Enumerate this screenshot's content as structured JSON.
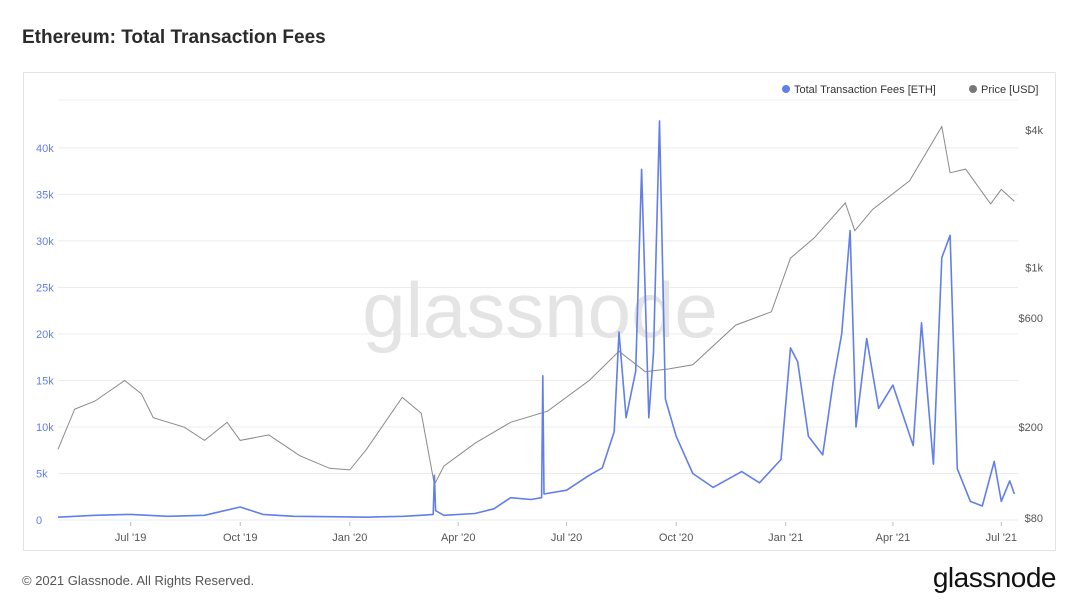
{
  "title": "Ethereum: Total Transaction Fees",
  "watermark": "glassnode",
  "footer": {
    "copyright": "© 2021 Glassnode. All Rights Reserved.",
    "brand": "glassnode"
  },
  "colors": {
    "fees": "#627eea",
    "price": "#8a8a8a",
    "grid": "#ececec",
    "left_axis_text": "#627eea"
  },
  "chart_data": {
    "type": "line",
    "title": "Ethereum: Total Transaction Fees",
    "legend_position": "top-right",
    "grid": true,
    "x_range": [
      "2019-05-01",
      "2021-07-15"
    ],
    "x_ticks": [
      {
        "date": "2019-07-01",
        "label": "Jul '19"
      },
      {
        "date": "2019-10-01",
        "label": "Oct '19"
      },
      {
        "date": "2020-01-01",
        "label": "Jan '20"
      },
      {
        "date": "2020-04-01",
        "label": "Apr '20"
      },
      {
        "date": "2020-07-01",
        "label": "Jul '20"
      },
      {
        "date": "2020-10-01",
        "label": "Oct '20"
      },
      {
        "date": "2021-01-01",
        "label": "Jan '21"
      },
      {
        "date": "2021-04-01",
        "label": "Apr '21"
      },
      {
        "date": "2021-07-01",
        "label": "Jul '21"
      }
    ],
    "y_left": {
      "range": [
        0,
        43000
      ],
      "ticks": [
        {
          "value": 0,
          "label": "0"
        },
        {
          "value": 5000,
          "label": "5k"
        },
        {
          "value": 10000,
          "label": "10k"
        },
        {
          "value": 15000,
          "label": "15k"
        },
        {
          "value": 20000,
          "label": "20k"
        },
        {
          "value": 25000,
          "label": "25k"
        },
        {
          "value": 30000,
          "label": "30k"
        },
        {
          "value": 35000,
          "label": "35k"
        },
        {
          "value": 40000,
          "label": "40k"
        }
      ]
    },
    "y_right": {
      "scale": "log",
      "range": [
        80,
        5000
      ],
      "ticks": [
        {
          "value": 80,
          "label": "$80"
        },
        {
          "value": 200,
          "label": "$200"
        },
        {
          "value": 600,
          "label": "$600"
        },
        {
          "value": 1000,
          "label": "$1k"
        },
        {
          "value": 4000,
          "label": "$4k"
        }
      ]
    },
    "series": [
      {
        "name": "Total Transaction Fees [ETH]",
        "axis": "left",
        "points": [
          [
            "2019-05-01",
            300
          ],
          [
            "2019-06-01",
            500
          ],
          [
            "2019-07-01",
            600
          ],
          [
            "2019-08-01",
            400
          ],
          [
            "2019-09-01",
            500
          ],
          [
            "2019-10-01",
            1400
          ],
          [
            "2019-10-20",
            600
          ],
          [
            "2019-11-15",
            400
          ],
          [
            "2019-12-15",
            350
          ],
          [
            "2020-01-15",
            300
          ],
          [
            "2020-02-15",
            400
          ],
          [
            "2020-03-01",
            500
          ],
          [
            "2020-03-11",
            600
          ],
          [
            "2020-03-12",
            4800
          ],
          [
            "2020-03-13",
            1000
          ],
          [
            "2020-03-20",
            500
          ],
          [
            "2020-04-15",
            700
          ],
          [
            "2020-05-01",
            1200
          ],
          [
            "2020-05-15",
            2400
          ],
          [
            "2020-06-01",
            2200
          ],
          [
            "2020-06-10",
            2400
          ],
          [
            "2020-06-11",
            15500
          ],
          [
            "2020-06-12",
            2800
          ],
          [
            "2020-07-01",
            3200
          ],
          [
            "2020-07-20",
            4800
          ],
          [
            "2020-07-31",
            5600
          ],
          [
            "2020-08-10",
            9500
          ],
          [
            "2020-08-14",
            20200
          ],
          [
            "2020-08-20",
            11000
          ],
          [
            "2020-08-28",
            16000
          ],
          [
            "2020-09-02",
            37700
          ],
          [
            "2020-09-08",
            11000
          ],
          [
            "2020-09-12",
            18000
          ],
          [
            "2020-09-17",
            42900
          ],
          [
            "2020-09-22",
            13000
          ],
          [
            "2020-10-01",
            9000
          ],
          [
            "2020-10-15",
            5000
          ],
          [
            "2020-11-01",
            3500
          ],
          [
            "2020-11-25",
            5200
          ],
          [
            "2020-12-10",
            4000
          ],
          [
            "2020-12-28",
            6500
          ],
          [
            "2021-01-05",
            18500
          ],
          [
            "2021-01-11",
            17000
          ],
          [
            "2021-01-20",
            9000
          ],
          [
            "2021-02-01",
            7000
          ],
          [
            "2021-02-10",
            15000
          ],
          [
            "2021-02-17",
            20000
          ],
          [
            "2021-02-24",
            31100
          ],
          [
            "2021-03-01",
            10000
          ],
          [
            "2021-03-10",
            19500
          ],
          [
            "2021-03-20",
            12000
          ],
          [
            "2021-04-01",
            14500
          ],
          [
            "2021-04-18",
            8000
          ],
          [
            "2021-04-25",
            21200
          ],
          [
            "2021-05-05",
            6000
          ],
          [
            "2021-05-12",
            28200
          ],
          [
            "2021-05-19",
            30600
          ],
          [
            "2021-05-25",
            5500
          ],
          [
            "2021-06-05",
            2000
          ],
          [
            "2021-06-15",
            1500
          ],
          [
            "2021-06-25",
            6300
          ],
          [
            "2021-07-01",
            2000
          ],
          [
            "2021-07-08",
            4200
          ],
          [
            "2021-07-12",
            2800
          ]
        ]
      },
      {
        "name": "Price [USD]",
        "axis": "right",
        "points": [
          [
            "2019-05-01",
            160
          ],
          [
            "2019-05-15",
            240
          ],
          [
            "2019-06-01",
            260
          ],
          [
            "2019-06-26",
            320
          ],
          [
            "2019-07-10",
            280
          ],
          [
            "2019-07-20",
            220
          ],
          [
            "2019-08-15",
            200
          ],
          [
            "2019-09-01",
            175
          ],
          [
            "2019-09-20",
            210
          ],
          [
            "2019-10-01",
            175
          ],
          [
            "2019-10-25",
            185
          ],
          [
            "2019-11-20",
            150
          ],
          [
            "2019-12-15",
            132
          ],
          [
            "2020-01-01",
            130
          ],
          [
            "2020-01-15",
            160
          ],
          [
            "2020-02-14",
            270
          ],
          [
            "2020-03-01",
            230
          ],
          [
            "2020-03-12",
            112
          ],
          [
            "2020-03-20",
            135
          ],
          [
            "2020-04-15",
            170
          ],
          [
            "2020-05-15",
            210
          ],
          [
            "2020-06-15",
            235
          ],
          [
            "2020-07-20",
            320
          ],
          [
            "2020-08-14",
            430
          ],
          [
            "2020-09-05",
            350
          ],
          [
            "2020-09-25",
            360
          ],
          [
            "2020-10-15",
            375
          ],
          [
            "2020-11-20",
            560
          ],
          [
            "2020-12-20",
            640
          ],
          [
            "2021-01-05",
            1100
          ],
          [
            "2021-01-25",
            1350
          ],
          [
            "2021-02-20",
            1920
          ],
          [
            "2021-02-28",
            1450
          ],
          [
            "2021-03-15",
            1800
          ],
          [
            "2021-04-15",
            2400
          ],
          [
            "2021-05-12",
            4150
          ],
          [
            "2021-05-19",
            2600
          ],
          [
            "2021-06-01",
            2700
          ],
          [
            "2021-06-22",
            1900
          ],
          [
            "2021-07-01",
            2200
          ],
          [
            "2021-07-12",
            1950
          ]
        ]
      }
    ]
  }
}
